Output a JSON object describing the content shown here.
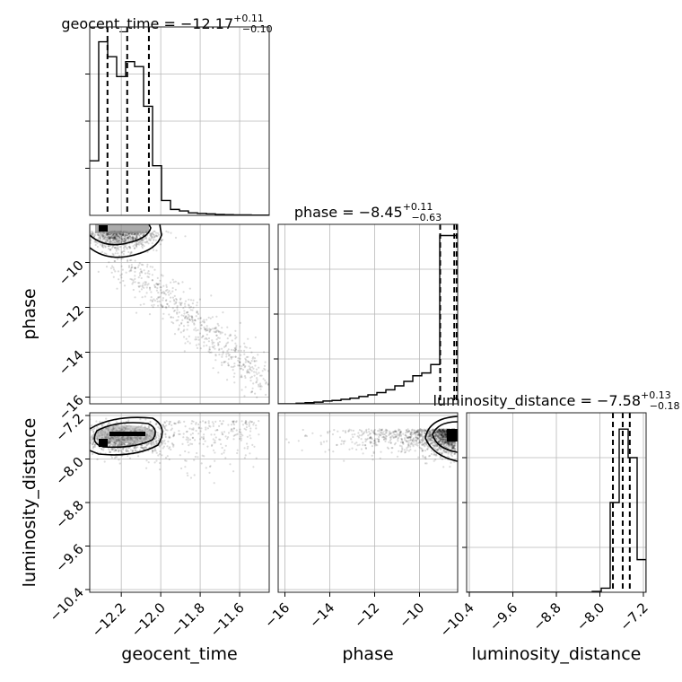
{
  "chart_data": {
    "type": "corner",
    "parameters": [
      {
        "name": "geocent_time",
        "median": "−12.17",
        "plus": "+0.11",
        "minus": "−0.10",
        "title_prefix": "geocent_time = ",
        "axis_ticks": [
          -12.2,
          -12.0,
          -11.8,
          -11.6
        ],
        "axis_tick_labels": [
          "−12.2",
          "−12.0",
          "−11.8",
          "−11.6"
        ],
        "range": [
          -12.36,
          -11.45
        ],
        "quantiles": [
          -12.27,
          -12.17,
          -12.06
        ]
      },
      {
        "name": "phase",
        "median": "−8.45",
        "plus": "+0.11",
        "minus": "−0.63",
        "title_prefix": "phase = ",
        "axis_ticks": [
          -16,
          -14,
          -12,
          -10
        ],
        "axis_tick_labels": [
          "−16",
          "−14",
          "−12",
          "−10"
        ],
        "range": [
          -16.3,
          -8.3
        ],
        "quantiles": [
          -9.08,
          -8.45,
          -8.34
        ]
      },
      {
        "name": "luminosity_distance",
        "median": "−7.58",
        "plus": "+0.13",
        "minus": "−0.18",
        "title_prefix": "luminosity_distance = ",
        "axis_ticks": [
          -10.4,
          -9.6,
          -8.8,
          -8.0,
          -7.2
        ],
        "axis_tick_labels": [
          "−10.4",
          "−9.6",
          "−8.8",
          "−8.0",
          "−7.2"
        ],
        "range": [
          -10.45,
          -7.15
        ],
        "quantiles": [
          -7.76,
          -7.58,
          -7.45
        ]
      }
    ],
    "histograms": {
      "geocent_time": {
        "edges_start": -12.36,
        "bin_width": 0.0455,
        "counts": [
          11,
          35,
          32,
          28,
          31,
          30,
          22,
          10,
          3,
          1.2,
          0.9,
          0.5,
          0.4,
          0.3,
          0.2,
          0.15,
          0.1,
          0.1,
          0.05,
          0.05
        ],
        "ymax": 38
      },
      "phase": {
        "edges_start": -16.3,
        "bin_width": 0.4,
        "counts": [
          0,
          0,
          0.1,
          0.2,
          0.3,
          0.5,
          0.6,
          0.8,
          1,
          1.3,
          1.6,
          2,
          2.5,
          3.2,
          4,
          5,
          5.5,
          7,
          30,
          30
        ],
        "ymax": 32
      },
      "luminosity_distance": {
        "edges_start": -10.45,
        "bin_width": 0.165,
        "counts": [
          0,
          0,
          0,
          0,
          0,
          0,
          0,
          0,
          0,
          0,
          0,
          0,
          0,
          0,
          0.1,
          0.5,
          11,
          20,
          16.5,
          4,
          0
        ],
        "ymax": 22
      }
    },
    "grid": true,
    "legend": "none"
  }
}
